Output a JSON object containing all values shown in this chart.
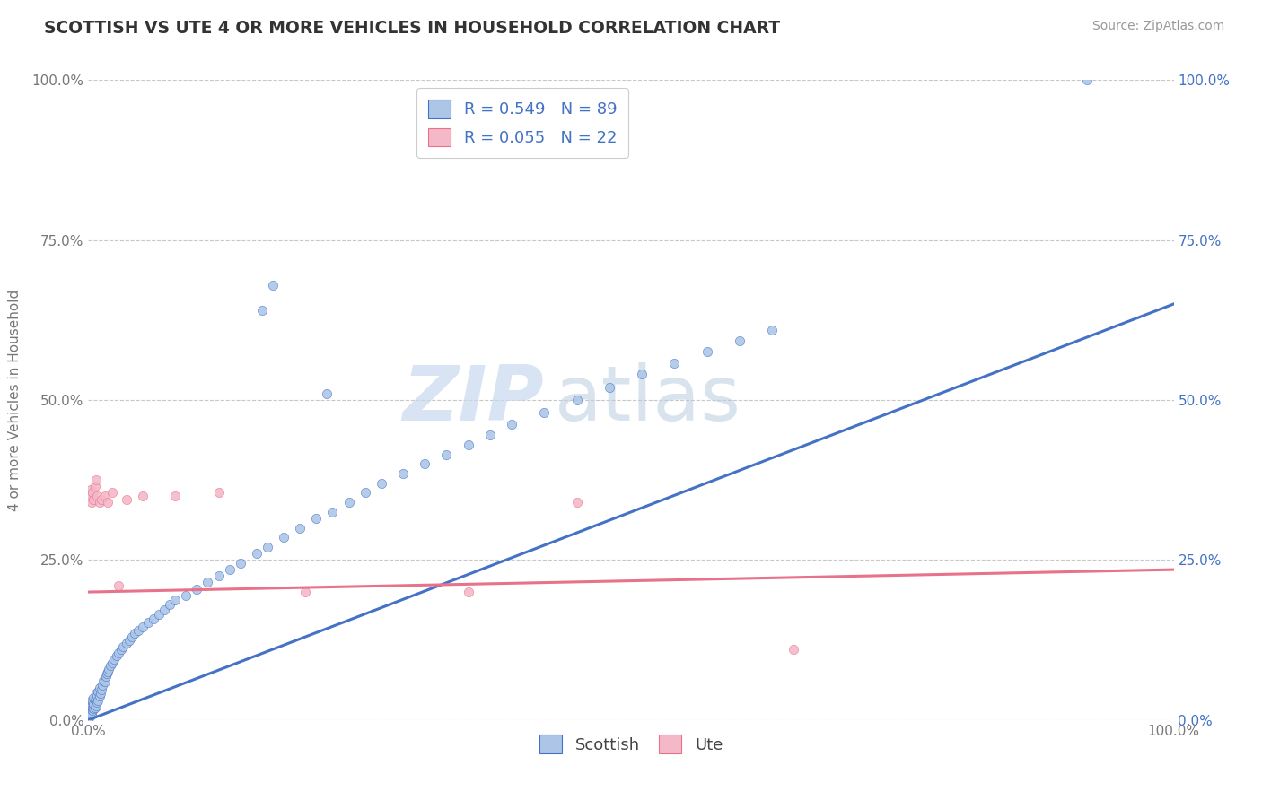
{
  "title": "SCOTTISH VS UTE 4 OR MORE VEHICLES IN HOUSEHOLD CORRELATION CHART",
  "source": "Source: ZipAtlas.com",
  "ylabel": "4 or more Vehicles in Household",
  "R1": 0.549,
  "N1": 89,
  "R2": 0.055,
  "N2": 22,
  "scatter_color1": "#adc6e8",
  "scatter_color2": "#f4b8c8",
  "line_color1": "#4472c4",
  "line_color2": "#e8728a",
  "background_color": "#ffffff",
  "grid_color": "#c8c8c8",
  "title_color": "#333333",
  "right_axis_color": "#4472c4",
  "watermark_color": "#dce8f4",
  "legend_label1": "Scottish",
  "legend_label2": "Ute",
  "ytick_values": [
    0.0,
    0.25,
    0.5,
    0.75,
    1.0
  ],
  "ytick_labels": [
    "0.0%",
    "25.0%",
    "50.0%",
    "75.0%",
    "100.0%"
  ],
  "xtick_values": [
    0.0,
    1.0
  ],
  "xtick_labels": [
    "0.0%",
    "100.0%"
  ],
  "xlim": [
    0.0,
    1.0
  ],
  "ylim": [
    0.0,
    1.0
  ],
  "scottish_x": [
    0.001,
    0.001,
    0.001,
    0.002,
    0.002,
    0.002,
    0.002,
    0.003,
    0.003,
    0.003,
    0.003,
    0.004,
    0.004,
    0.004,
    0.005,
    0.005,
    0.005,
    0.006,
    0.006,
    0.007,
    0.007,
    0.007,
    0.008,
    0.008,
    0.009,
    0.009,
    0.01,
    0.01,
    0.011,
    0.012,
    0.013,
    0.014,
    0.015,
    0.016,
    0.017,
    0.018,
    0.019,
    0.02,
    0.022,
    0.024,
    0.026,
    0.028,
    0.03,
    0.032,
    0.035,
    0.038,
    0.04,
    0.043,
    0.046,
    0.05,
    0.055,
    0.06,
    0.065,
    0.07,
    0.075,
    0.08,
    0.09,
    0.1,
    0.11,
    0.12,
    0.13,
    0.14,
    0.155,
    0.165,
    0.18,
    0.195,
    0.21,
    0.225,
    0.24,
    0.255,
    0.27,
    0.29,
    0.31,
    0.33,
    0.35,
    0.37,
    0.39,
    0.42,
    0.45,
    0.48,
    0.51,
    0.54,
    0.57,
    0.6,
    0.63,
    0.22,
    0.17,
    0.16,
    0.92
  ],
  "scottish_y": [
    0.005,
    0.01,
    0.015,
    0.008,
    0.012,
    0.018,
    0.025,
    0.01,
    0.016,
    0.022,
    0.03,
    0.015,
    0.02,
    0.028,
    0.018,
    0.025,
    0.035,
    0.02,
    0.03,
    0.022,
    0.032,
    0.042,
    0.028,
    0.038,
    0.03,
    0.045,
    0.038,
    0.05,
    0.042,
    0.048,
    0.055,
    0.062,
    0.06,
    0.068,
    0.072,
    0.075,
    0.08,
    0.085,
    0.09,
    0.095,
    0.1,
    0.105,
    0.11,
    0.115,
    0.12,
    0.125,
    0.13,
    0.135,
    0.14,
    0.145,
    0.152,
    0.158,
    0.165,
    0.172,
    0.18,
    0.188,
    0.195,
    0.205,
    0.215,
    0.225,
    0.235,
    0.245,
    0.26,
    0.27,
    0.285,
    0.3,
    0.315,
    0.325,
    0.34,
    0.355,
    0.37,
    0.385,
    0.4,
    0.415,
    0.43,
    0.445,
    0.462,
    0.48,
    0.5,
    0.52,
    0.54,
    0.558,
    0.575,
    0.592,
    0.61,
    0.51,
    0.68,
    0.64,
    1.0
  ],
  "ute_x": [
    0.001,
    0.002,
    0.003,
    0.004,
    0.005,
    0.006,
    0.007,
    0.008,
    0.01,
    0.012,
    0.015,
    0.018,
    0.022,
    0.028,
    0.035,
    0.05,
    0.08,
    0.12,
    0.2,
    0.35,
    0.65,
    0.45
  ],
  "ute_y": [
    0.35,
    0.36,
    0.34,
    0.355,
    0.345,
    0.365,
    0.375,
    0.35,
    0.34,
    0.345,
    0.35,
    0.34,
    0.355,
    0.21,
    0.345,
    0.35,
    0.35,
    0.355,
    0.2,
    0.2,
    0.11,
    0.34
  ],
  "blue_line_x0": 0.0,
  "blue_line_y0": 0.0,
  "blue_line_x1": 1.0,
  "blue_line_y1": 0.65,
  "pink_line_x0": 0.0,
  "pink_line_y0": 0.2,
  "pink_line_x1": 1.0,
  "pink_line_y1": 0.235
}
